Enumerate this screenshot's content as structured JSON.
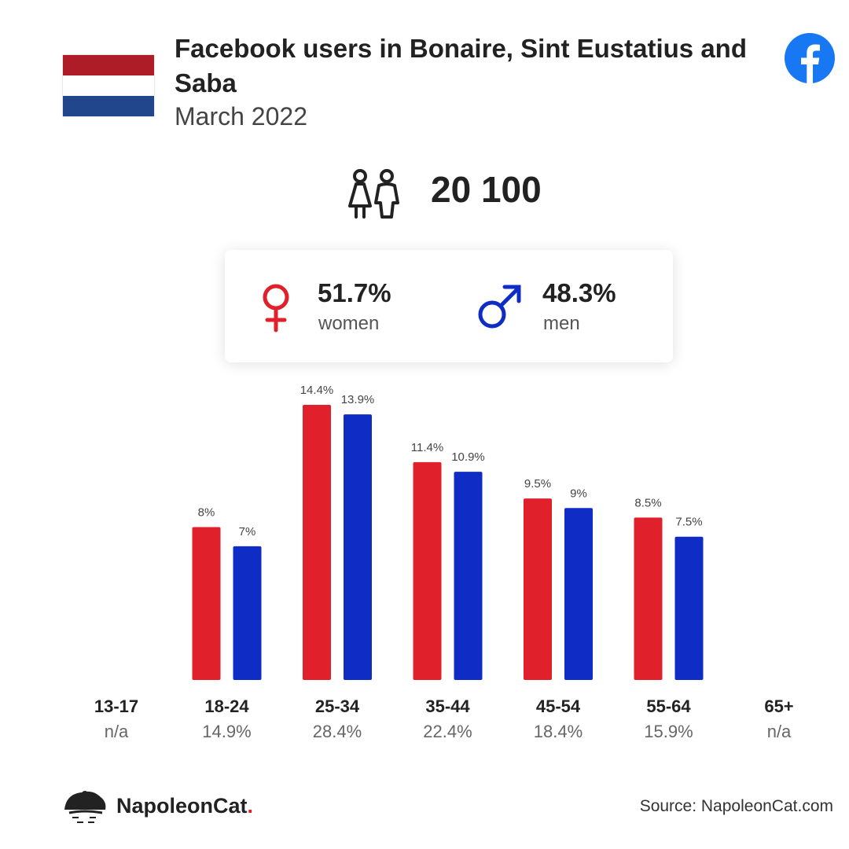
{
  "header": {
    "title": "Facebook users in Bonaire, Sint Eustatius and Saba",
    "subtitle": "March 2022",
    "flag_colors": [
      "#ae1c28",
      "#ffffff",
      "#21468b"
    ],
    "flag_icon": "netherlands-flag-icon",
    "brand_icon": "facebook-icon"
  },
  "total": {
    "icon": "users-icon",
    "value": "20 100"
  },
  "gender": {
    "women": {
      "icon": "female-symbol-icon",
      "percent": "51.7%",
      "label": "women",
      "color": "#e0202a"
    },
    "men": {
      "icon": "male-symbol-icon",
      "percent": "48.3%",
      "label": "men",
      "color": "#0f2cc4"
    }
  },
  "chart_data": {
    "type": "bar",
    "categories": [
      "13-17",
      "18-24",
      "25-34",
      "35-44",
      "45-54",
      "55-64",
      "65+"
    ],
    "category_totals": [
      "n/a",
      "14.9%",
      "28.4%",
      "22.4%",
      "18.4%",
      "15.9%",
      "n/a"
    ],
    "series": [
      {
        "name": "women",
        "color": "#e0202a",
        "values": [
          null,
          8,
          14.4,
          11.4,
          9.5,
          8.5,
          null
        ],
        "labels": [
          "",
          "8%",
          "14.4%",
          "11.4%",
          "9.5%",
          "8.5%",
          ""
        ]
      },
      {
        "name": "men",
        "color": "#0f2cc4",
        "values": [
          null,
          7,
          13.9,
          10.9,
          9,
          7.5,
          null
        ],
        "labels": [
          "",
          "7%",
          "13.9%",
          "10.9%",
          "9%",
          "7.5%",
          ""
        ]
      }
    ],
    "ylim": [
      0,
      14.4
    ],
    "grid": false,
    "legend": "none"
  },
  "footer": {
    "logo_icon": "napoleoncat-logo-icon",
    "logo_text": "NapoleonCat",
    "logo_dot": ".",
    "source": "Source: NapoleonCat.com"
  }
}
